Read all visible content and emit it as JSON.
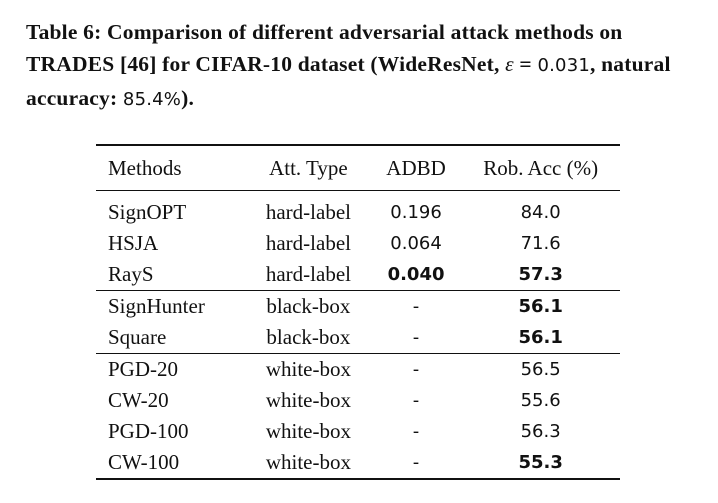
{
  "caption": {
    "prefix": "Table 6: Comparison of different adversarial attack methods on TRADES [46] for CIFAR-10 dataset (WideResNet, ",
    "epsilon_symbol": "ε",
    "eq": " = ",
    "epsilon_value": "0.031",
    "mid": ", natural accuracy: ",
    "natural_accuracy": "85.4%",
    "suffix": ")."
  },
  "table": {
    "headers": [
      "Methods",
      "Att. Type",
      "ADBD",
      "Rob. Acc (%)"
    ],
    "rows": [
      {
        "method": "SignOPT",
        "type": "hard-label",
        "adbd": "0.196",
        "acc": "84.0",
        "adbd_bold": false,
        "acc_bold": false
      },
      {
        "method": "HSJA",
        "type": "hard-label",
        "adbd": "0.064",
        "acc": "71.6",
        "adbd_bold": false,
        "acc_bold": false
      },
      {
        "method": "RayS",
        "type": "hard-label",
        "adbd": "0.040",
        "acc": "57.3",
        "adbd_bold": true,
        "acc_bold": true
      },
      {
        "method": "SignHunter",
        "type": "black-box",
        "adbd": "-",
        "acc": "56.1",
        "adbd_bold": false,
        "acc_bold": true
      },
      {
        "method": "Square",
        "type": "black-box",
        "adbd": "-",
        "acc": "56.1",
        "adbd_bold": false,
        "acc_bold": true
      },
      {
        "method": "PGD-20",
        "type": "white-box",
        "adbd": "-",
        "acc": "56.5",
        "adbd_bold": false,
        "acc_bold": false
      },
      {
        "method": "CW-20",
        "type": "white-box",
        "adbd": "-",
        "acc": "55.6",
        "adbd_bold": false,
        "acc_bold": false
      },
      {
        "method": "PGD-100",
        "type": "white-box",
        "adbd": "-",
        "acc": "56.3",
        "adbd_bold": false,
        "acc_bold": false
      },
      {
        "method": "CW-100",
        "type": "white-box",
        "adbd": "-",
        "acc": "55.3",
        "adbd_bold": false,
        "acc_bold": true
      }
    ]
  }
}
